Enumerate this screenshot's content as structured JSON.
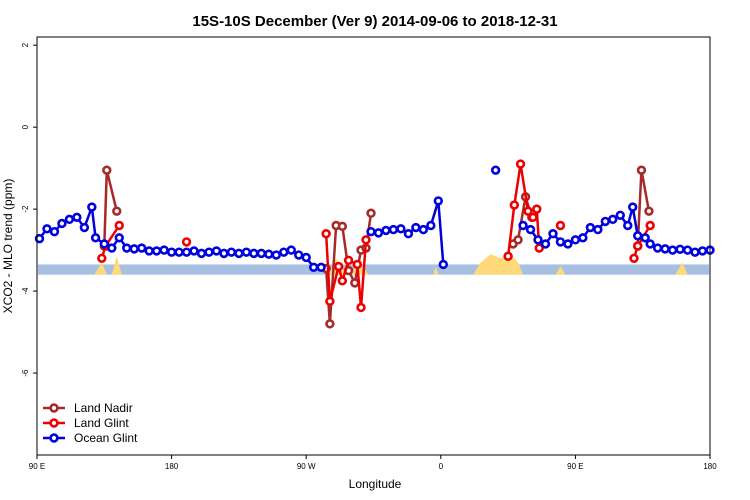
{
  "chart_data": {
    "type": "line",
    "title": "15S-10S December (Ver 9)   2014-09-06 to 2018-12-31",
    "xlabel": "Longitude",
    "ylabel": "XCO2 - MLO trend (ppm)",
    "xlim": [
      -90,
      180
    ],
    "ylim": [
      -8,
      2.2
    ],
    "x_ticks": [
      {
        "value": -90,
        "label": "90 E"
      },
      {
        "value": -36,
        "label": "180"
      },
      {
        "value": 18,
        "label": "90 W"
      },
      {
        "value": 72,
        "label": "0"
      },
      {
        "value": 126,
        "label": "90 E"
      },
      {
        "value": 180,
        "label": "180"
      }
    ],
    "y_ticks": [
      {
        "value": 2,
        "label": "2"
      },
      {
        "value": 0,
        "label": "0"
      },
      {
        "value": -2,
        "label": "-2"
      },
      {
        "value": -4,
        "label": "-4"
      },
      {
        "value": -6,
        "label": "-6"
      }
    ],
    "background_band": {
      "color": "#a7bfe0",
      "y_range": [
        -3.6,
        -3.35
      ]
    },
    "land_fill": {
      "color": "#ffd97a",
      "baseline": -3.6,
      "regions": [
        [
          [
            -67,
            -3.6
          ],
          [
            -64,
            -3.3
          ],
          [
            -62,
            -3.6
          ]
        ],
        [
          [
            -60,
            -3.6
          ],
          [
            -58,
            -3.15
          ],
          [
            -56,
            -3.6
          ]
        ],
        [
          [
            27,
            -3.6
          ],
          [
            30,
            -3.2
          ],
          [
            34,
            -3.6
          ]
        ],
        [
          [
            36,
            -3.6
          ],
          [
            39,
            -3.25
          ],
          [
            43,
            -3.6
          ]
        ],
        [
          [
            69,
            -3.6
          ],
          [
            70,
            -3.4
          ],
          [
            71,
            -3.6
          ]
        ],
        [
          [
            85,
            -3.6
          ],
          [
            88,
            -3.3
          ],
          [
            92,
            -3.1
          ],
          [
            96,
            -3.2
          ],
          [
            100,
            -3.1
          ],
          [
            103,
            -3.3
          ],
          [
            105,
            -3.6
          ]
        ],
        [
          [
            118,
            -3.6
          ],
          [
            120,
            -3.4
          ],
          [
            122,
            -3.6
          ]
        ],
        [
          [
            166,
            -3.6
          ],
          [
            169,
            -3.3
          ],
          [
            171,
            -3.6
          ]
        ]
      ]
    },
    "series": [
      {
        "name": "Land Nadir",
        "color": "#a52a2a",
        "segments": [
          [
            [
              -63,
              -2.9
            ],
            [
              -62,
              -1.05
            ],
            [
              -58,
              -2.05
            ]
          ],
          [
            [
              26,
              -3.45
            ],
            [
              27.5,
              -4.8
            ],
            [
              30,
              -2.4
            ],
            [
              32.5,
              -2.42
            ],
            [
              35,
              -3.5
            ],
            [
              37.5,
              -3.8
            ],
            [
              40,
              -3.0
            ],
            [
              42,
              -2.95
            ],
            [
              44,
              -2.1
            ]
          ],
          [
            [
              101,
              -2.85
            ],
            [
              103,
              -2.75
            ],
            [
              106,
              -1.7
            ],
            [
              108.5,
              -2.2
            ]
          ],
          [
            [
              151,
              -2.9
            ],
            [
              152.5,
              -1.05
            ],
            [
              155.5,
              -2.05
            ]
          ]
        ]
      },
      {
        "name": "Land Glint",
        "color": "#ee0000",
        "segments": [
          [
            [
              -64,
              -3.2
            ],
            [
              -62.5,
              -2.9
            ],
            [
              -57,
              -2.4
            ]
          ],
          [
            [
              -30,
              -2.8
            ]
          ],
          [
            [
              26,
              -2.6
            ],
            [
              27.5,
              -4.25
            ],
            [
              31,
              -3.4
            ],
            [
              32.5,
              -3.75
            ],
            [
              35,
              -3.25
            ],
            [
              38.5,
              -3.35
            ],
            [
              40,
              -4.4
            ],
            [
              42,
              -2.75
            ]
          ],
          [
            [
              99,
              -3.15
            ],
            [
              101.5,
              -1.9
            ],
            [
              104,
              -0.9
            ],
            [
              107,
              -2.05
            ],
            [
              109,
              -2.2
            ],
            [
              110.5,
              -2.0
            ],
            [
              111.5,
              -2.95
            ]
          ],
          [
            [
              120,
              -2.4
            ]
          ],
          [
            [
              149.5,
              -3.2
            ],
            [
              151,
              -2.9
            ],
            [
              156,
              -2.4
            ]
          ]
        ]
      },
      {
        "name": "Ocean Glint",
        "color": "#0000dd",
        "segments": [
          [
            [
              -89,
              -2.72
            ],
            [
              -86,
              -2.48
            ],
            [
              -83,
              -2.55
            ],
            [
              -80,
              -2.35
            ],
            [
              -77,
              -2.25
            ],
            [
              -74,
              -2.2
            ],
            [
              -71,
              -2.45
            ],
            [
              -68,
              -1.95
            ],
            [
              -66.5,
              -2.7
            ],
            [
              -63,
              -2.85
            ],
            [
              -60,
              -2.95
            ],
            [
              -57,
              -2.7
            ],
            [
              -54,
              -2.95
            ],
            [
              -51,
              -2.97
            ],
            [
              -48,
              -2.95
            ],
            [
              -45,
              -3.02
            ],
            [
              -42,
              -3.02
            ],
            [
              -39,
              -3.0
            ],
            [
              -36,
              -3.05
            ],
            [
              -33,
              -3.05
            ],
            [
              -30,
              -3.05
            ],
            [
              -27,
              -3.02
            ],
            [
              -24,
              -3.08
            ],
            [
              -21,
              -3.05
            ],
            [
              -18,
              -3.02
            ],
            [
              -15,
              -3.08
            ],
            [
              -12,
              -3.05
            ],
            [
              -9,
              -3.08
            ],
            [
              -6,
              -3.05
            ],
            [
              -3,
              -3.08
            ],
            [
              0,
              -3.08
            ],
            [
              3,
              -3.1
            ],
            [
              6,
              -3.12
            ],
            [
              9,
              -3.05
            ],
            [
              12,
              -3.0
            ],
            [
              15,
              -3.12
            ],
            [
              18,
              -3.18
            ],
            [
              21,
              -3.42
            ],
            [
              24,
              -3.42
            ]
          ],
          [
            [
              44,
              -2.55
            ],
            [
              47,
              -2.58
            ],
            [
              50,
              -2.52
            ],
            [
              53,
              -2.5
            ],
            [
              56,
              -2.48
            ],
            [
              59,
              -2.6
            ],
            [
              62,
              -2.45
            ],
            [
              65,
              -2.5
            ],
            [
              68,
              -2.4
            ],
            [
              71,
              -1.8
            ],
            [
              73,
              -3.35
            ]
          ],
          [
            [
              94,
              -1.05
            ]
          ],
          [
            [
              105,
              -2.4
            ],
            [
              108,
              -2.5
            ],
            [
              111,
              -2.75
            ],
            [
              114,
              -2.85
            ],
            [
              117,
              -2.6
            ],
            [
              120,
              -2.8
            ],
            [
              123,
              -2.85
            ],
            [
              126,
              -2.75
            ],
            [
              129,
              -2.7
            ],
            [
              132,
              -2.45
            ],
            [
              135,
              -2.5
            ],
            [
              138,
              -2.3
            ],
            [
              141,
              -2.25
            ],
            [
              144,
              -2.15
            ],
            [
              147,
              -2.4
            ],
            [
              149,
              -1.95
            ],
            [
              151,
              -2.65
            ],
            [
              154,
              -2.7
            ],
            [
              156,
              -2.85
            ],
            [
              159,
              -2.95
            ],
            [
              162,
              -2.97
            ],
            [
              165,
              -3.0
            ],
            [
              168,
              -2.98
            ],
            [
              171,
              -3.0
            ],
            [
              174,
              -3.05
            ],
            [
              177,
              -3.02
            ],
            [
              180,
              -3.0
            ]
          ]
        ]
      }
    ],
    "legend": {
      "position": "bottom-left"
    }
  }
}
